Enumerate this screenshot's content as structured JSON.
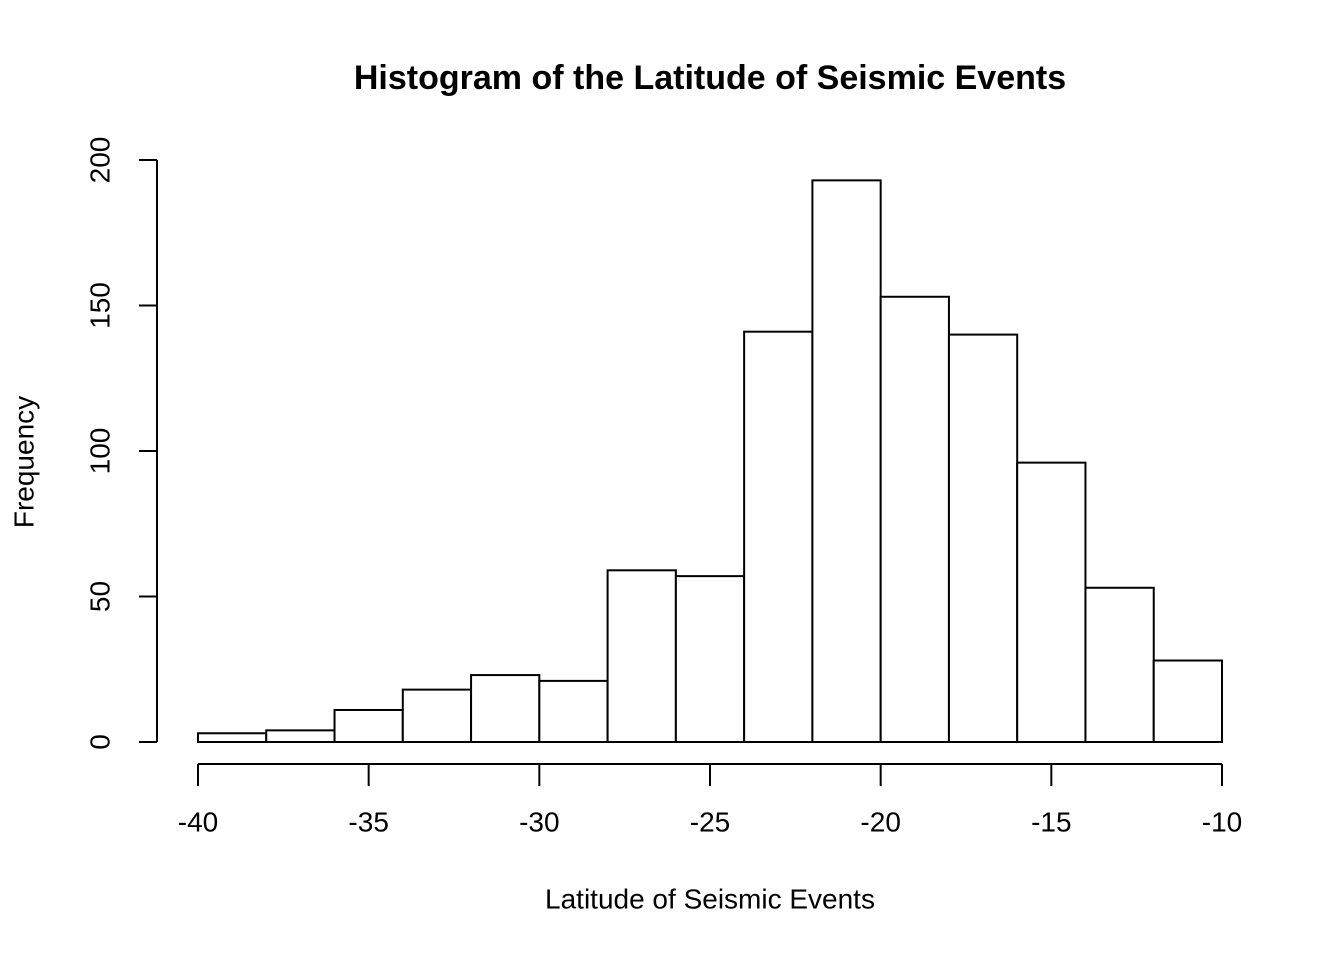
{
  "chart_data": {
    "type": "histogram",
    "title": "Histogram of the Latitude of Seismic Events",
    "x_label": "Latitude of Seismic Events",
    "y_label": "Frequency",
    "bins": [
      -40,
      -38,
      -36,
      -34,
      -32,
      -30,
      -28,
      -26,
      -24,
      -22,
      -20,
      -18,
      -16,
      -14,
      -12,
      -10
    ],
    "values": [
      3,
      4,
      11,
      18,
      23,
      21,
      59,
      57,
      141,
      193,
      153,
      140,
      96,
      53,
      28
    ],
    "color": "#ffffff",
    "xlim": [
      -40,
      -10
    ],
    "xticks": [
      -40,
      -35,
      -30,
      -25,
      -20,
      -15,
      -10
    ],
    "ylim": [
      0,
      200
    ],
    "yticks": [
      0,
      50,
      100,
      150,
      200
    ]
  }
}
